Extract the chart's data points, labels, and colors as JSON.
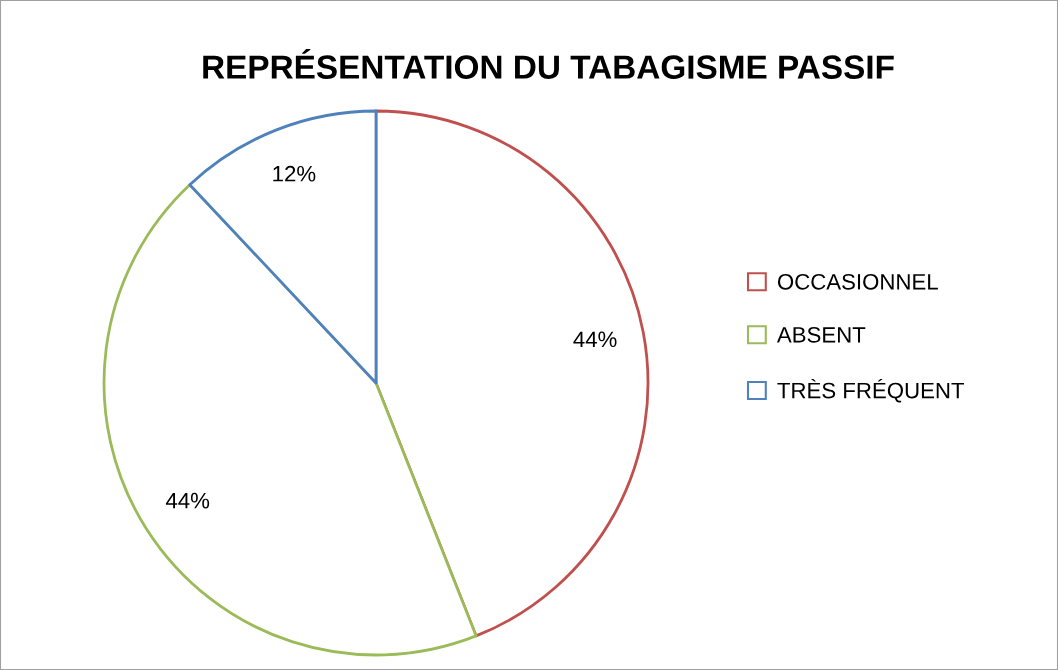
{
  "chart_data": {
    "type": "pie",
    "title": "REPRÉSENTATION DU TABAGISME PASSIF",
    "categories": [
      "OCCASIONNEL",
      "ABSENT",
      "TRÈS FRÉQUENT"
    ],
    "values": [
      44,
      44,
      12
    ],
    "value_labels": [
      "44%",
      "44%",
      "12%"
    ],
    "colors": [
      "#c0504d",
      "#9bbb59",
      "#4f81bd"
    ],
    "legend": "right"
  }
}
